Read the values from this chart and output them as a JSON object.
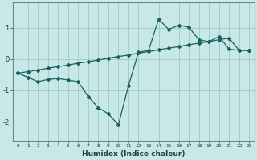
{
  "xlabel": "Humidex (Indice chaleur)",
  "bg_color": "#c8e8e8",
  "grid_color": "#a0c8c8",
  "line_color": "#1a6060",
  "xlim": [
    -0.5,
    23.5
  ],
  "ylim": [
    -2.6,
    1.8
  ],
  "yticks": [
    -2,
    -1,
    0,
    1
  ],
  "xticks": [
    0,
    1,
    2,
    3,
    4,
    5,
    6,
    7,
    8,
    9,
    10,
    11,
    12,
    13,
    14,
    15,
    16,
    17,
    18,
    19,
    20,
    21,
    22,
    23
  ],
  "line1_x": [
    0,
    1,
    2,
    3,
    4,
    5,
    6,
    7,
    8,
    9,
    10,
    11,
    12,
    13,
    14,
    15,
    16,
    17,
    18,
    19,
    20,
    21,
    22,
    23
  ],
  "line1_y": [
    -0.45,
    -0.58,
    -0.72,
    -0.65,
    -0.62,
    -0.67,
    -0.72,
    -1.2,
    -1.55,
    -1.75,
    -2.1,
    -0.85,
    0.22,
    0.28,
    1.28,
    0.95,
    1.08,
    1.02,
    0.62,
    0.56,
    0.72,
    0.32,
    0.28,
    0.28
  ],
  "line2_x": [
    0,
    1,
    2,
    3,
    4,
    5,
    6,
    7,
    8,
    9,
    10,
    11,
    12,
    13,
    14,
    15,
    16,
    17,
    18,
    19,
    20,
    21,
    22,
    23
  ],
  "line2_y": [
    -0.45,
    -0.4,
    -0.35,
    -0.29,
    -0.24,
    -0.19,
    -0.13,
    -0.08,
    -0.03,
    0.03,
    0.08,
    0.13,
    0.19,
    0.24,
    0.3,
    0.35,
    0.4,
    0.46,
    0.51,
    0.56,
    0.62,
    0.67,
    0.28,
    0.28
  ]
}
